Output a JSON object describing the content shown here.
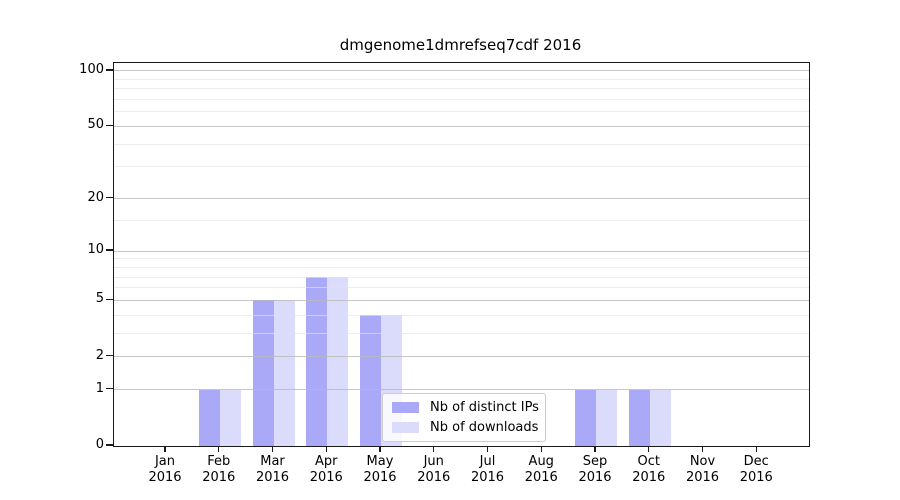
{
  "title": "dmgenome1dmrefseq7cdf 2016",
  "legend": {
    "items": [
      {
        "label": "Nb of distinct IPs",
        "color": "#a9a9f7"
      },
      {
        "label": "Nb of downloads",
        "color": "#dbdbfb"
      }
    ]
  },
  "axes": {
    "y_major_ticks": [
      0,
      1,
      2,
      5,
      10,
      20,
      50,
      100
    ],
    "y_tick_labels": [
      "0",
      "1",
      "2",
      "5",
      "10",
      "20",
      "50",
      "100"
    ],
    "y_minor_ticks": [
      3,
      4,
      6,
      7,
      8,
      9,
      15,
      30,
      40,
      60,
      70,
      80,
      90
    ],
    "x_tick_labels": [
      [
        "Jan",
        "2016"
      ],
      [
        "Feb",
        "2016"
      ],
      [
        "Mar",
        "2016"
      ],
      [
        "Apr",
        "2016"
      ],
      [
        "May",
        "2016"
      ],
      [
        "Jun",
        "2016"
      ],
      [
        "Jul",
        "2016"
      ],
      [
        "Aug",
        "2016"
      ],
      [
        "Sep",
        "2016"
      ],
      [
        "Oct",
        "2016"
      ],
      [
        "Nov",
        "2016"
      ],
      [
        "Dec",
        "2016"
      ]
    ]
  },
  "chart_data": {
    "type": "bar",
    "title": "dmgenome1dmrefseq7cdf 2016",
    "xlabel": "",
    "ylabel": "",
    "categories": [
      "Jan 2016",
      "Feb 2016",
      "Mar 2016",
      "Apr 2016",
      "May 2016",
      "Jun 2016",
      "Jul 2016",
      "Aug 2016",
      "Sep 2016",
      "Oct 2016",
      "Nov 2016",
      "Dec 2016"
    ],
    "series": [
      {
        "name": "Nb of distinct IPs",
        "color": "#a9a9f7",
        "values": [
          0,
          1,
          5,
          7,
          4,
          0,
          0,
          0,
          1,
          1,
          0,
          0
        ]
      },
      {
        "name": "Nb of downloads",
        "color": "#dbdbfb",
        "values": [
          0,
          1,
          5,
          7,
          4,
          0,
          0,
          0,
          1,
          1,
          0,
          0
        ]
      }
    ],
    "y_scale": "log1p",
    "y_ticks": [
      0,
      1,
      2,
      5,
      10,
      20,
      50,
      100
    ],
    "ylim": [
      0,
      110.4
    ],
    "grid": true,
    "legend_position": "lower center"
  },
  "colors": {
    "bar_dark": "#a9a9f7",
    "bar_light": "#dbdbfb",
    "grid_major": "rgba(185,185,185,0.8)",
    "grid_minor": "rgba(228,228,228,0.65)",
    "axis": "#1a1a1a",
    "text": "#000000",
    "legend_border": "#cccccc",
    "legend_bg": "rgba(255,255,255,0.8)"
  }
}
